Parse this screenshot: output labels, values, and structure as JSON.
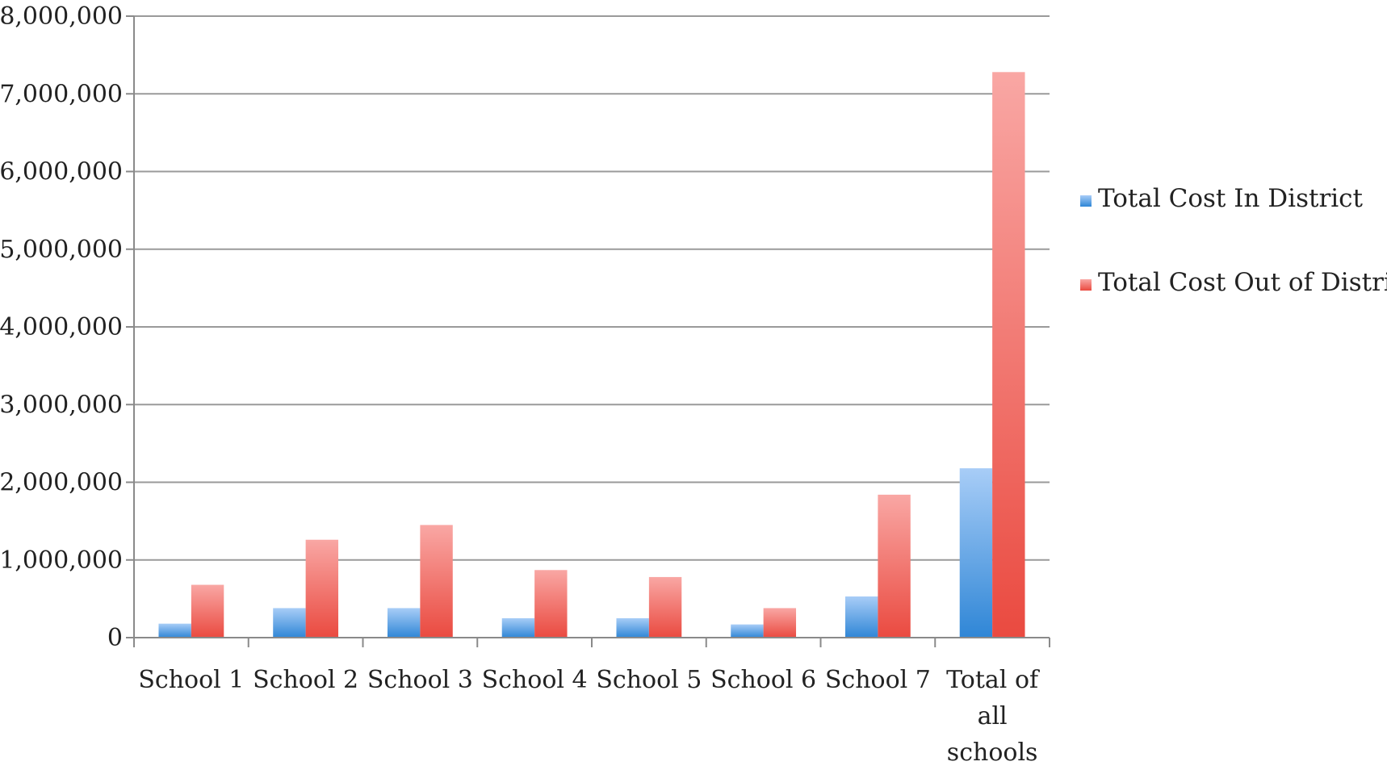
{
  "chart_data": {
    "type": "bar",
    "title": "",
    "xlabel": "",
    "ylabel": "",
    "categories": [
      "School 1",
      "School 2",
      "School 3",
      "School 4",
      "School 5",
      "School 6",
      "School 7",
      "Total of all schools"
    ],
    "category_label_lines": [
      [
        "School 1"
      ],
      [
        "School 2"
      ],
      [
        "School 3"
      ],
      [
        "School 4"
      ],
      [
        "School 5"
      ],
      [
        "School 6"
      ],
      [
        "School 7"
      ],
      [
        "Total of",
        "all",
        "schools"
      ]
    ],
    "series": [
      {
        "name": "Total Cost In District",
        "values": [
          180000,
          380000,
          380000,
          250000,
          250000,
          170000,
          530000,
          2180000
        ],
        "color_top": "#a8cdf7",
        "color_bottom": "#2f86d6"
      },
      {
        "name": "Total Cost Out of District",
        "values": [
          680000,
          1260000,
          1450000,
          870000,
          780000,
          380000,
          1840000,
          7280000
        ],
        "color_top": "#f9a7a4",
        "color_bottom": "#ea4a40"
      }
    ],
    "ylim": [
      0,
      8000000
    ],
    "yticks": [
      0,
      1000000,
      2000000,
      3000000,
      4000000,
      5000000,
      6000000,
      7000000,
      8000000
    ],
    "ytick_labels": [
      "0",
      "1,000,000",
      "2,000,000",
      "3,000,000",
      "4,000,000",
      "5,000,000",
      "6,000,000",
      "7,000,000",
      "8,000,000"
    ],
    "grid": true,
    "legend_position": "right"
  }
}
